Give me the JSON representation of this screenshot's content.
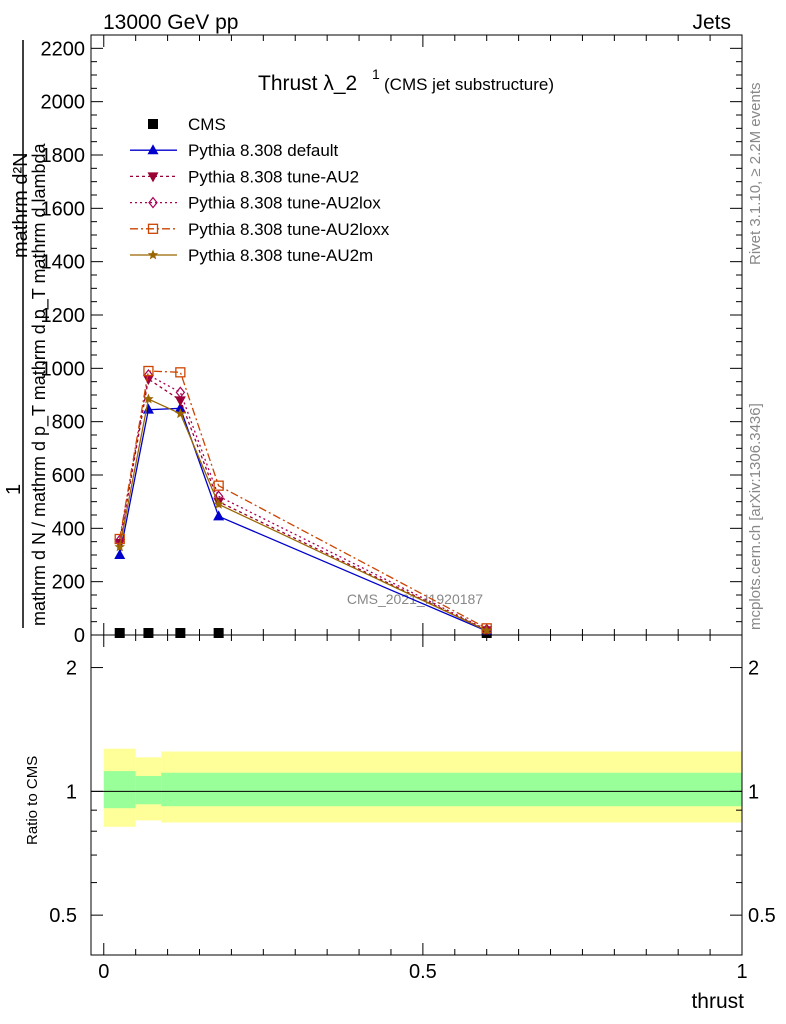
{
  "header": {
    "left": "13000 GeV pp",
    "right": "Jets"
  },
  "side": {
    "top": "Rivet 3.1.10, ≥ 2.2M events",
    "bottom": "mcplots.cern.ch [arXiv:1306.3436]"
  },
  "watermark": "CMS_2021_I1920187",
  "chart_data": [
    {
      "type": "line",
      "title_main": "Thrust λ_2",
      "title_sup": "1",
      "title_sub": "(CMS jet substructure)",
      "xlabel": "thrust",
      "ylabel_numerator": "1",
      "ylabel_denominator": "mathrm d N / mathrm d p_T mathrm d p_T mathrm d lambda",
      "ylabel_top": "mathrm d²N",
      "xlim": [
        -0.02,
        1.0
      ],
      "ylim": [
        0,
        2250
      ],
      "x_ticks": [
        "0",
        "0.5",
        "1"
      ],
      "y_ticks": [
        "0",
        "200",
        "400",
        "600",
        "800",
        "1000",
        "1200",
        "1400",
        "1600",
        "1800",
        "2000",
        "2200"
      ],
      "legend_position": "top-left",
      "series": [
        {
          "name": "CMS",
          "color": "#000000",
          "marker": "square",
          "dash": "",
          "x": [
            0.025,
            0.07,
            0.12,
            0.18,
            0.6
          ],
          "y": [
            0,
            0,
            0,
            0,
            0
          ]
        },
        {
          "name": "Pythia 8.308 default",
          "color": "#0000cc",
          "marker": "triangle-up",
          "dash": "",
          "x": [
            0.025,
            0.07,
            0.12,
            0.18,
            0.6
          ],
          "y": [
            300,
            845,
            850,
            445,
            15
          ]
        },
        {
          "name": "Pythia 8.308 tune-AU2",
          "color": "#990033",
          "marker": "triangle-down",
          "dash": "3,3",
          "x": [
            0.025,
            0.07,
            0.12,
            0.18,
            0.6
          ],
          "y": [
            345,
            960,
            880,
            500,
            18
          ]
        },
        {
          "name": "Pythia 8.308 tune-AU2lox",
          "color": "#aa0055",
          "marker": "diamond",
          "dash": "2,3",
          "x": [
            0.025,
            0.07,
            0.12,
            0.18,
            0.6
          ],
          "y": [
            355,
            975,
            910,
            520,
            20
          ]
        },
        {
          "name": "Pythia 8.308 tune-AU2loxx",
          "color": "#cc4400",
          "marker": "square-open",
          "dash": "8,3,2,3",
          "x": [
            0.025,
            0.07,
            0.12,
            0.18,
            0.6
          ],
          "y": [
            360,
            990,
            985,
            560,
            25
          ]
        },
        {
          "name": "Pythia 8.308 tune-AU2m",
          "color": "#996600",
          "marker": "star",
          "dash": "",
          "x": [
            0.025,
            0.07,
            0.12,
            0.18,
            0.6
          ],
          "y": [
            330,
            885,
            830,
            490,
            17
          ]
        }
      ]
    },
    {
      "type": "area",
      "ylabel": "Ratio to CMS",
      "xlim": [
        -0.02,
        1.0
      ],
      "ylim": [
        0.4,
        2.4
      ],
      "log_y": true,
      "x_ticks": [
        "0",
        "0.5",
        "1"
      ],
      "y_ticks": [
        "0.5",
        "1",
        "2"
      ],
      "reference_line": 1,
      "bins": [
        {
          "x0": 0.0,
          "x1": 0.05,
          "inner": [
            0.91,
            1.12
          ],
          "outer": [
            0.82,
            1.27
          ]
        },
        {
          "x0": 0.05,
          "x1": 0.09,
          "inner": [
            0.93,
            1.09
          ],
          "outer": [
            0.85,
            1.21
          ]
        },
        {
          "x0": 0.09,
          "x1": 1.0,
          "inner": [
            0.92,
            1.11
          ],
          "outer": [
            0.84,
            1.25
          ]
        }
      ],
      "inner_color": "#99ff99",
      "outer_color": "#ffff99"
    }
  ]
}
